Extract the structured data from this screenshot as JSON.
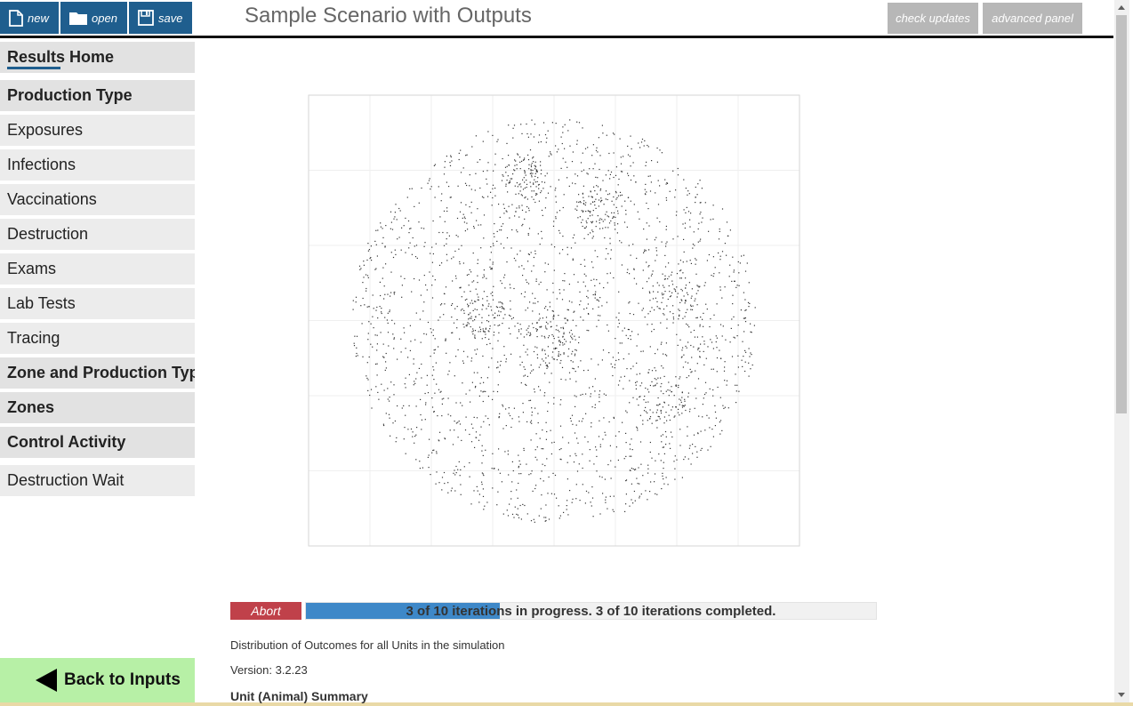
{
  "toolbar": {
    "new_label": "new",
    "open_label": "open",
    "save_label": "save"
  },
  "header": {
    "title": "Sample Scenario with Outputs",
    "check_updates": "check updates",
    "advanced_panel": "advanced panel"
  },
  "sidebar": {
    "items": [
      {
        "label": "Results Home",
        "kind": "section",
        "active": true
      },
      {
        "label": "Production Type",
        "kind": "section"
      },
      {
        "label": "Exposures",
        "kind": "item"
      },
      {
        "label": "Infections",
        "kind": "item"
      },
      {
        "label": "Vaccinations",
        "kind": "item"
      },
      {
        "label": "Destruction",
        "kind": "item"
      },
      {
        "label": "Exams",
        "kind": "item"
      },
      {
        "label": "Lab Tests",
        "kind": "item"
      },
      {
        "label": "Tracing",
        "kind": "item"
      },
      {
        "label": "Zone and Production Type",
        "kind": "section"
      },
      {
        "label": "Zones",
        "kind": "section"
      },
      {
        "label": "Control Activity",
        "kind": "section"
      },
      {
        "label": "Destruction Wait",
        "kind": "item"
      }
    ],
    "back_label": "Back to Inputs"
  },
  "chart_data": {
    "type": "scatter",
    "title": "",
    "xlabel": "",
    "ylabel": "",
    "grid": true,
    "description_points": "dense circular cloud of unit locations (~4000 points) with denser clusters"
  },
  "progress": {
    "abort_label": "Abort",
    "fraction": 0.34,
    "text": "3 of 10 iterations in progress. 3 of 10 iterations completed."
  },
  "info": {
    "distribution": "Distribution of Outcomes for all Units in the simulation",
    "version": "Version: 3.2.23",
    "summary": "Unit (Animal) Summary"
  },
  "colors": {
    "toolbar": "#1f5e8e",
    "abort": "#c0414a",
    "progress": "#3e88c8",
    "back": "#b7f0a6"
  }
}
